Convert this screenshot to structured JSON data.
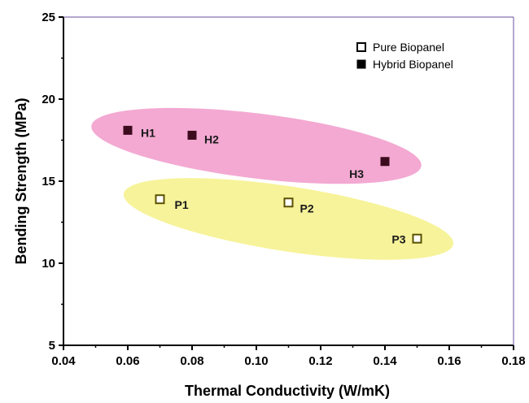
{
  "chart_data": {
    "type": "scatter",
    "xlabel": "Thermal Conductivity (W/mK)",
    "ylabel": "Bending Strength (MPa)",
    "xlim": [
      0.04,
      0.18
    ],
    "ylim": [
      5,
      25
    ],
    "x_ticks": [
      "0.04",
      "0.06",
      "0.08",
      "0.10",
      "0.12",
      "0.14",
      "0.16",
      "0.18"
    ],
    "y_ticks": [
      "5",
      "10",
      "15",
      "20",
      "25"
    ],
    "grid": false,
    "legend_position": "top-right",
    "series": [
      {
        "name": "Pure Biopanel",
        "marker": "hollow-square",
        "color": "#5a5200",
        "highlight_color": "#f7f39a",
        "points": [
          {
            "label": "P1",
            "x": 0.07,
            "y": 13.9
          },
          {
            "label": "P2",
            "x": 0.11,
            "y": 13.7
          },
          {
            "label": "P3",
            "x": 0.15,
            "y": 11.5
          }
        ]
      },
      {
        "name": "Hybrid Biopanel",
        "marker": "filled-square",
        "color": "#3d0b1e",
        "highlight_color": "#f3a9d2",
        "points": [
          {
            "label": "H1",
            "x": 0.06,
            "y": 18.1
          },
          {
            "label": "H2",
            "x": 0.08,
            "y": 17.8
          },
          {
            "label": "H3",
            "x": 0.14,
            "y": 16.2
          }
        ]
      }
    ]
  }
}
